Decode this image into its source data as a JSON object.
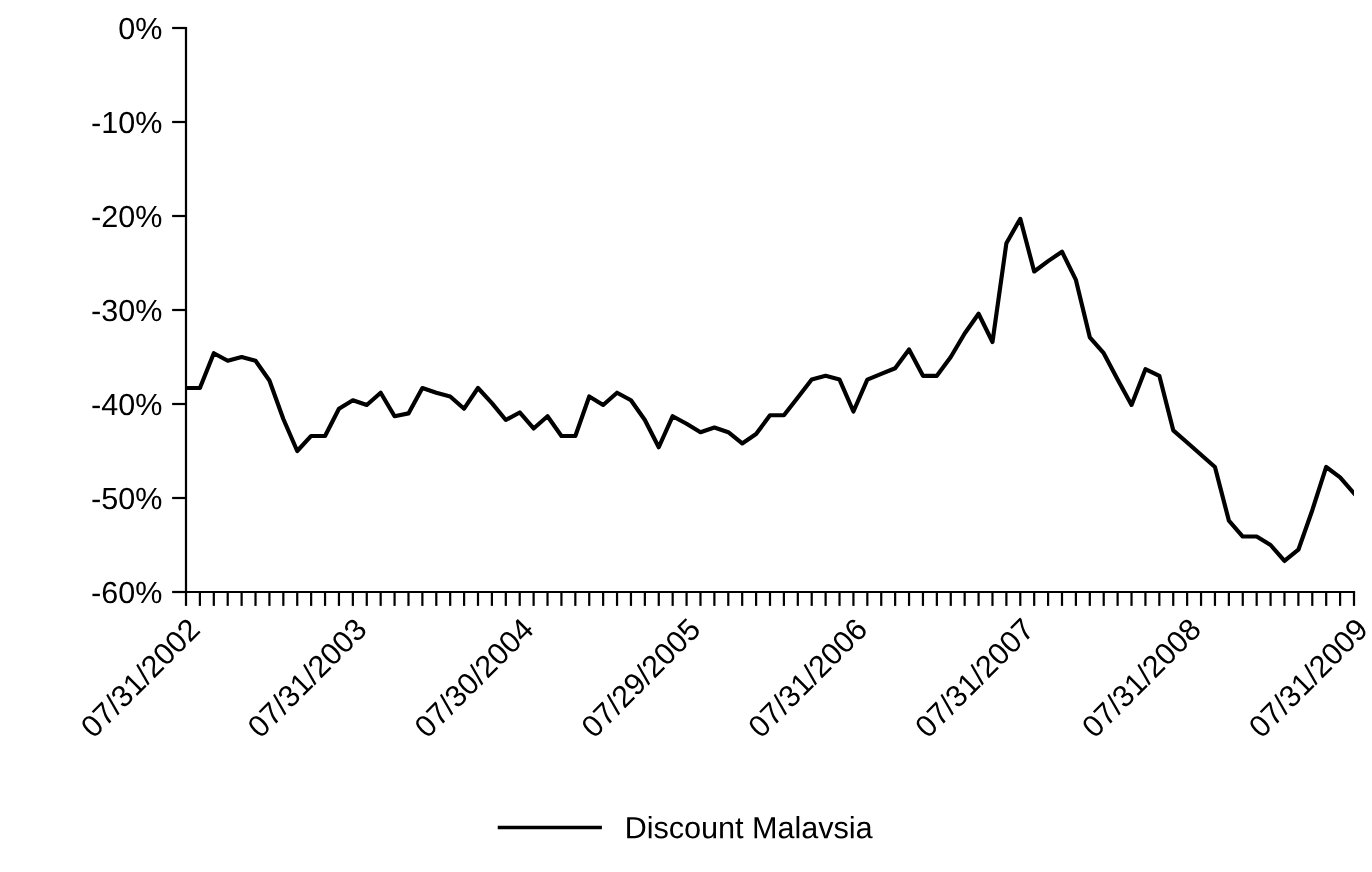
{
  "chart_data": {
    "type": "line",
    "categories": [
      "07/31/2002",
      null,
      null,
      null,
      null,
      null,
      null,
      null,
      null,
      null,
      null,
      null,
      "07/31/2003",
      null,
      null,
      null,
      null,
      null,
      null,
      null,
      null,
      null,
      null,
      null,
      "07/30/2004",
      null,
      null,
      null,
      null,
      null,
      null,
      null,
      null,
      null,
      null,
      null,
      "07/29/2005",
      null,
      null,
      null,
      null,
      null,
      null,
      null,
      null,
      null,
      null,
      null,
      "07/31/2006",
      null,
      null,
      null,
      null,
      null,
      null,
      null,
      null,
      null,
      null,
      null,
      "07/31/2007",
      null,
      null,
      null,
      null,
      null,
      null,
      null,
      null,
      null,
      null,
      null,
      "07/31/2008",
      null,
      null,
      null,
      null,
      null,
      null,
      null,
      null,
      null,
      null,
      null,
      "07/31/2009"
    ],
    "series": [
      {
        "name": "Discount Malavsia",
        "color": "#000000",
        "values": [
          -38.3,
          -38.3,
          -34.6,
          -35.4,
          -35.0,
          -35.4,
          -37.5,
          -41.6,
          -45.0,
          -43.4,
          -43.4,
          -40.5,
          -39.6,
          -40.1,
          -38.8,
          -41.3,
          -41.0,
          -38.3,
          -38.8,
          -39.2,
          -40.5,
          -38.3,
          -39.9,
          -41.7,
          -40.9,
          -42.6,
          -41.3,
          -43.4,
          -43.4,
          -39.2,
          -40.1,
          -38.8,
          -39.6,
          -41.7,
          -44.6,
          -41.3,
          -42.1,
          -43.0,
          -42.5,
          -43.0,
          -44.2,
          -43.2,
          -41.2,
          -41.2,
          -39.3,
          -37.4,
          -37.0,
          -37.4,
          -40.8,
          -37.4,
          -36.8,
          -36.2,
          -34.2,
          -37.0,
          -37.0,
          -35.0,
          -32.5,
          -30.4,
          -33.4,
          -22.9,
          -20.3,
          -25.9,
          -24.8,
          -23.8,
          -26.8,
          -32.9,
          -34.6,
          -37.4,
          -40.1,
          -36.3,
          -37.0,
          -42.8,
          -44.1,
          -45.4,
          -46.7,
          -52.4,
          -54.1,
          -54.1,
          -55.0,
          -56.7,
          -55.5,
          -51.3,
          -46.7,
          -47.8,
          -49.5
        ]
      }
    ],
    "ylim": [
      -60,
      0
    ],
    "yticks": [
      {
        "value": -60,
        "label": "-60%"
      },
      {
        "value": -50,
        "label": "-50%"
      },
      {
        "value": -40,
        "label": "-40%"
      },
      {
        "value": -30,
        "label": "-30%"
      },
      {
        "value": -20,
        "label": "-20%"
      },
      {
        "value": -10,
        "label": "-10%"
      },
      {
        "value": 0,
        "label": "0%"
      }
    ],
    "grid": false,
    "legend": "bottom",
    "marker": "none",
    "line_style": "solid"
  }
}
